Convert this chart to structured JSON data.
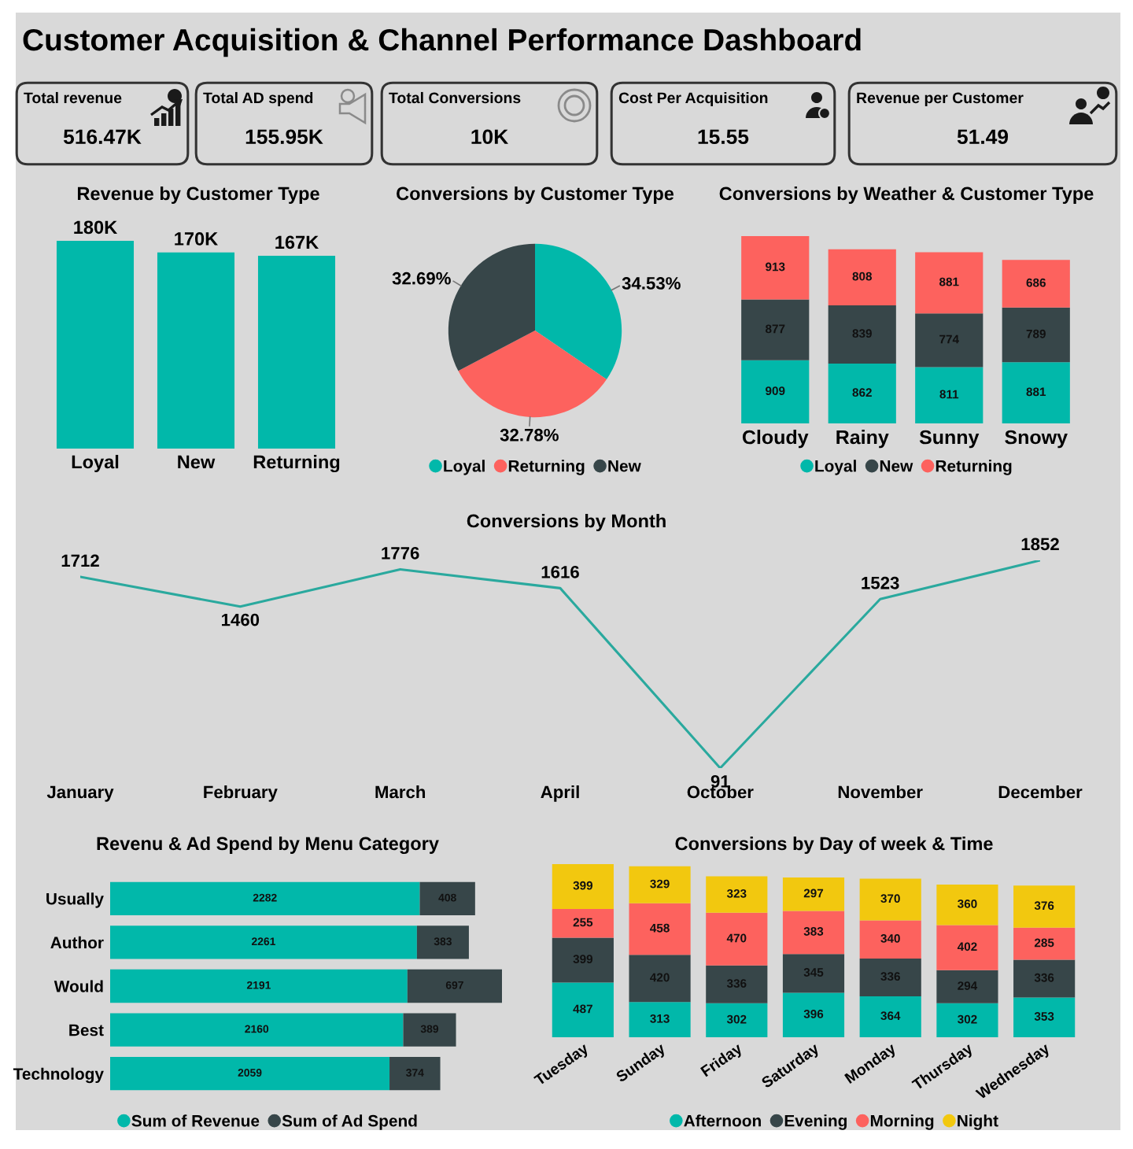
{
  "chart_data": [
    {
      "type": "other",
      "title": "Customer Acquisition & Channel Performance Dashboard"
    },
    {
      "type": "other",
      "title": "Total revenue",
      "annotations": [
        "516.47K"
      ]
    },
    {
      "type": "other",
      "title": "Total AD spend",
      "annotations": [
        "155.95K"
      ]
    },
    {
      "type": "other",
      "title": "Total Conversions",
      "annotations": [
        "10K"
      ]
    },
    {
      "type": "other",
      "title": "Cost Per Acquisition",
      "annotations": [
        "15.55"
      ]
    },
    {
      "type": "other",
      "title": "Revenue per Customer",
      "annotations": [
        "51.49"
      ]
    },
    {
      "type": "bar",
      "title": "Revenue by Customer Type",
      "categories": [
        "Loyal",
        "New",
        "Returning"
      ],
      "values": [
        180000,
        170000,
        167000
      ],
      "color": "#01b8aa",
      "value_labels": [
        "180K",
        "170K",
        "167K"
      ],
      "tick_labels": "x"
    },
    {
      "type": "pie",
      "title": "Conversions by Customer Type",
      "categories": [
        "Loyal",
        "Returning",
        "New"
      ],
      "values": [
        34.53,
        32.78,
        32.69
      ],
      "colors": [
        "#01b8aa",
        "#fd625e",
        "#374649"
      ],
      "value_labels": [
        "34.53%",
        "32.78%",
        "32.69%"
      ],
      "legend": "bottom"
    },
    {
      "type": "bar",
      "title": "Conversions by Weather & Customer Type",
      "categories": [
        "Cloudy",
        "Rainy",
        "Sunny",
        "Snowy"
      ],
      "stacked": true,
      "data_labels": true,
      "legend": "bottom",
      "tick_labels": "x",
      "series": [
        {
          "name": "Loyal",
          "color": "#01b8aa",
          "values": [
            909,
            862,
            811,
            881
          ]
        },
        {
          "name": "New",
          "color": "#374649",
          "values": [
            877,
            839,
            774,
            789
          ]
        },
        {
          "name": "Returning",
          "color": "#fd625e",
          "values": [
            913,
            808,
            881,
            686
          ]
        }
      ]
    },
    {
      "type": "line",
      "title": "Conversions by Month",
      "categories": [
        "January",
        "February",
        "March",
        "April",
        "October",
        "November",
        "December"
      ],
      "values": [
        1712,
        1460,
        1776,
        1616,
        91,
        1523,
        1852
      ],
      "color": "#2aa99e",
      "data_labels": true,
      "tick_labels": "x"
    },
    {
      "type": "bar",
      "title": "Revenu & Ad Spend by Menu Category",
      "orientation": "horizontal",
      "stacked": true,
      "data_labels": true,
      "legend": "bottom",
      "tick_labels": "y",
      "categories": [
        "Usually",
        "Author",
        "Would",
        "Best",
        "Technology"
      ],
      "series": [
        {
          "name": "Sum of Revenue",
          "color": "#01b8aa",
          "values": [
            2282,
            2261,
            2191,
            2160,
            2059
          ]
        },
        {
          "name": "Sum of Ad Spend",
          "color": "#374649",
          "values": [
            408,
            383,
            697,
            389,
            374
          ]
        }
      ]
    },
    {
      "type": "bar",
      "title": "Conversions by Day of week & Time",
      "stacked": true,
      "data_labels": true,
      "legend": "bottom",
      "tick_labels": "x",
      "categories": [
        "Tuesday",
        "Sunday",
        "Friday",
        "Saturday",
        "Monday",
        "Thursday",
        "Wednesday"
      ],
      "series": [
        {
          "name": "Afternoon",
          "color": "#01b8aa",
          "values": [
            487,
            313,
            302,
            396,
            364,
            302,
            353
          ]
        },
        {
          "name": "Evening",
          "color": "#374649",
          "values": [
            399,
            420,
            336,
            345,
            336,
            294,
            336
          ]
        },
        {
          "name": "Morning",
          "color": "#fd625e",
          "values": [
            255,
            458,
            470,
            383,
            340,
            402,
            285
          ]
        },
        {
          "name": "Night",
          "color": "#f2c80f",
          "values": [
            399,
            329,
            323,
            297,
            370,
            360,
            376
          ]
        }
      ]
    }
  ]
}
